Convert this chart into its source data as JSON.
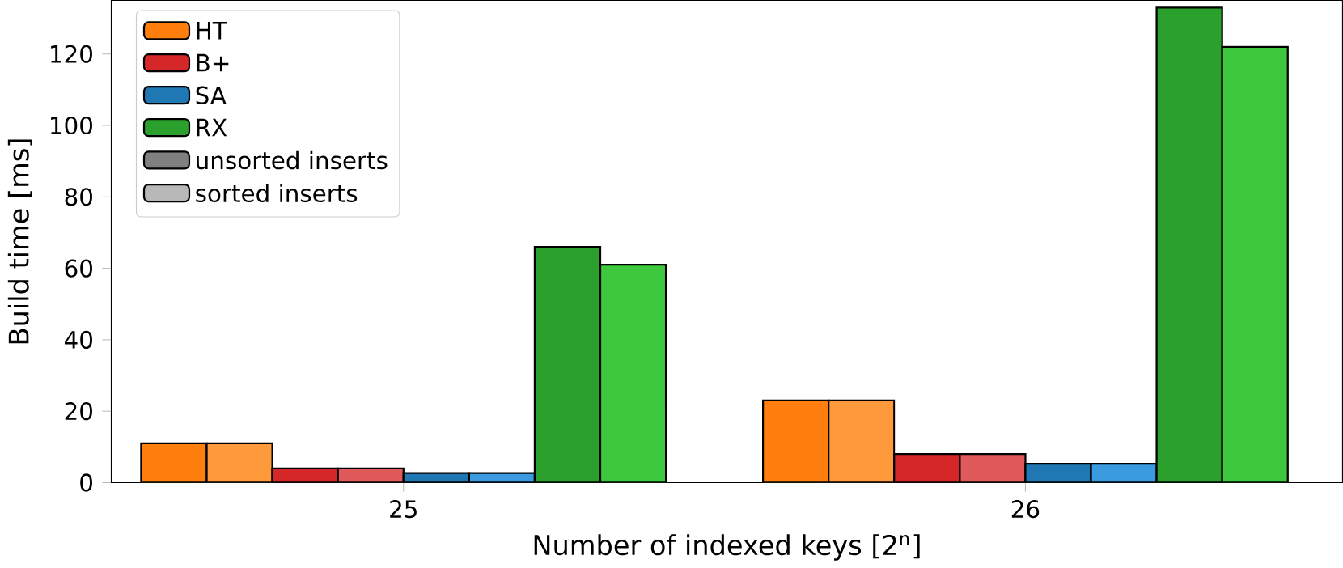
{
  "chart_data": {
    "type": "bar",
    "xlabel": "Number of indexed keys [2$^{n}$]",
    "ylabel": "Build time [ms]",
    "categories": [
      "25",
      "26"
    ],
    "series": [
      {
        "name": "HT",
        "color": "#ff7f0e",
        "values": [
          11,
          23
        ]
      },
      {
        "color": "#ff9a3c",
        "values": [
          11,
          23
        ]
      },
      {
        "name": "B+",
        "color": "#d62728",
        "values": [
          4,
          8
        ]
      },
      {
        "color": "#e05a5b",
        "values": [
          4,
          8
        ]
      },
      {
        "name": "SA",
        "color": "#1f77b4",
        "values": [
          2.7,
          5.3
        ]
      },
      {
        "color": "#3a9be0",
        "values": [
          2.7,
          5.3
        ]
      },
      {
        "name": "RX",
        "color": "#2ca02c",
        "values": [
          66,
          133
        ]
      },
      {
        "color": "#3dc83d",
        "values": [
          61,
          122
        ]
      },
      {
        "name": "unsorted inserts",
        "color": "#808080",
        "values": [
          null,
          null
        ]
      },
      {
        "name": "sorted inserts",
        "color": "#b8b8b8",
        "values": [
          null,
          null
        ]
      }
    ],
    "ylim": [
      0,
      135
    ],
    "yticks": [
      0,
      20,
      40,
      60,
      80,
      100,
      120
    ],
    "legend": "top left"
  }
}
